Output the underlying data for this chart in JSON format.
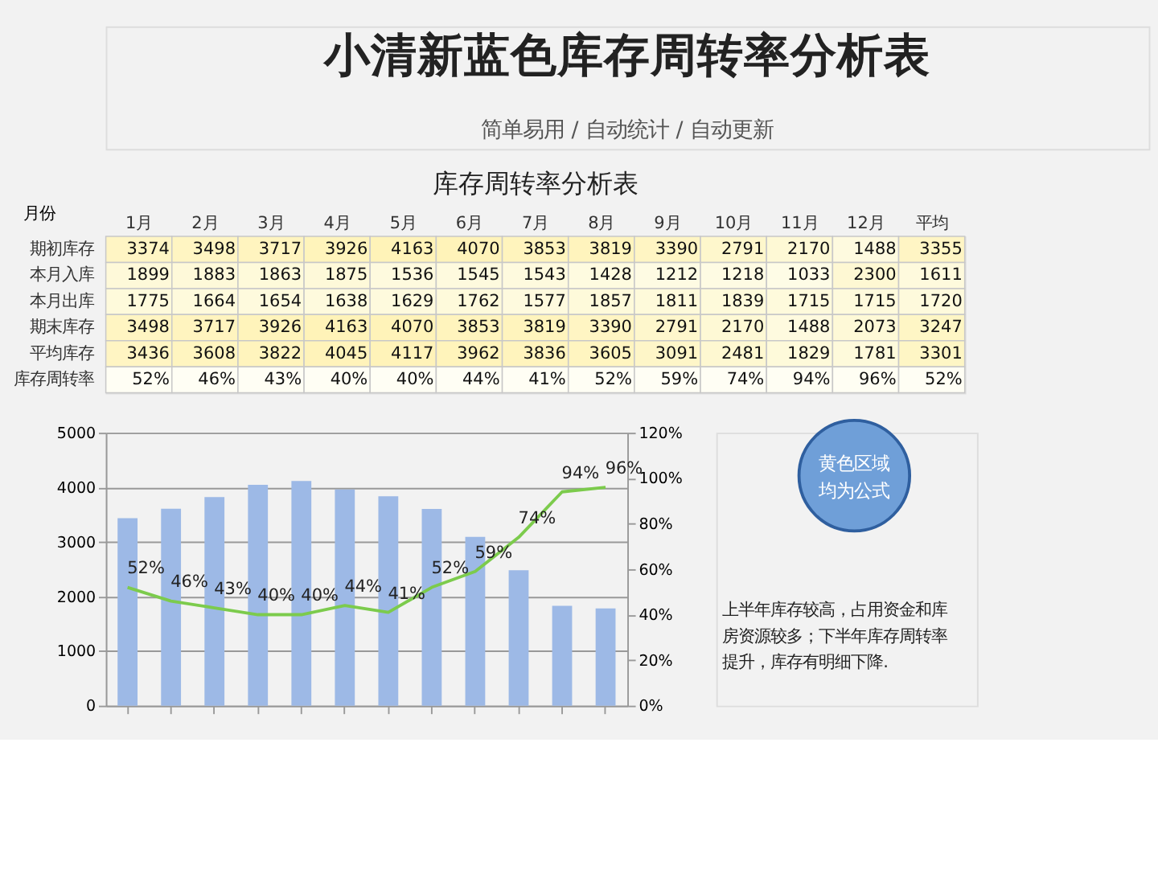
{
  "chart_data": [
    {
      "type": "other",
      "title": "小清新蓝色库存周转率分析表",
      "subtitle": "简单易用 / 自动统计 / 自动更新"
    },
    {
      "type": "heatmap",
      "title": "库存周转率分析表",
      "ylabel": "月份",
      "categories": [
        "1月",
        "2月",
        "3月",
        "4月",
        "5月",
        "6月",
        "7月",
        "8月",
        "9月",
        "10月",
        "11月",
        "12月",
        "平均"
      ],
      "y_categories": [
        "期初库存",
        "本月入库",
        "本月出库",
        "期末库存",
        "平均库存",
        "库存周转率"
      ],
      "cells": [
        [
          3374,
          3498,
          3717,
          3926,
          4163,
          4070,
          3853,
          3819,
          3390,
          2791,
          2170,
          1488,
          3355
        ],
        [
          1899,
          1883,
          1863,
          1875,
          1536,
          1545,
          1543,
          1428,
          1212,
          1218,
          1033,
          2300,
          1611
        ],
        [
          1775,
          1664,
          1654,
          1638,
          1629,
          1762,
          1577,
          1857,
          1811,
          1839,
          1715,
          1715,
          1720
        ],
        [
          3498,
          3717,
          3926,
          4163,
          4070,
          3853,
          3819,
          3390,
          2791,
          2170,
          1488,
          2073,
          3247
        ],
        [
          3436,
          3608,
          3822,
          4045,
          4117,
          3962,
          3836,
          3605,
          3091,
          2481,
          1829,
          1781,
          3301
        ],
        [
          52,
          46,
          43,
          40,
          40,
          44,
          41,
          52,
          59,
          74,
          94,
          96,
          52
        ]
      ],
      "cell_labels": [
        [
          "3374",
          "3498",
          "3717",
          "3926",
          "4163",
          "4070",
          "3853",
          "3819",
          "3390",
          "2791",
          "2170",
          "1488",
          "3355"
        ],
        [
          "1899",
          "1883",
          "1863",
          "1875",
          "1536",
          "1545",
          "1543",
          "1428",
          "1212",
          "1218",
          "1033",
          "2300",
          "1611"
        ],
        [
          "1775",
          "1664",
          "1654",
          "1638",
          "1629",
          "1762",
          "1577",
          "1857",
          "1811",
          "1839",
          "1715",
          "1715",
          "1720"
        ],
        [
          "3498",
          "3717",
          "3926",
          "4163",
          "4070",
          "3853",
          "3819",
          "3390",
          "2791",
          "2170",
          "1488",
          "2073",
          "3247"
        ],
        [
          "3436",
          "3608",
          "3822",
          "4045",
          "4117",
          "3962",
          "3836",
          "3605",
          "3091",
          "2481",
          "1829",
          "1781",
          "3301"
        ],
        [
          "52%",
          "46%",
          "43%",
          "40%",
          "40%",
          "44%",
          "41%",
          "52%",
          "59%",
          "74%",
          "94%",
          "96%",
          "52%"
        ]
      ]
    },
    {
      "type": "bar",
      "categories": [
        null,
        null,
        null,
        null,
        null,
        null,
        null,
        null,
        null,
        null,
        null,
        null
      ],
      "series": [
        {
          "type": "bar",
          "color": "#9db9e6",
          "values": [
            3436,
            3608,
            3822,
            4045,
            4117,
            3962,
            3836,
            3605,
            3091,
            2481,
            1829,
            1781
          ]
        },
        {
          "type": "line",
          "axis": "y2",
          "color": "#7ccb4c",
          "values": [
            52,
            46,
            43,
            40,
            40,
            44,
            41,
            52,
            59,
            74,
            94,
            96
          ],
          "value_labels": [
            "52%",
            "46%",
            "43%",
            "40%",
            "40%",
            "44%",
            "41%",
            "52%",
            "59%",
            "74%",
            "94%",
            "96%"
          ]
        }
      ],
      "ylim": [
        0,
        5000
      ],
      "yticks": [
        0,
        1000,
        2000,
        3000,
        4000,
        5000
      ],
      "y2lim": [
        0,
        120
      ],
      "y2ticks": [
        {
          "value": 0,
          "label": "0%"
        },
        {
          "value": 20,
          "label": "20%"
        },
        {
          "value": 40,
          "label": "40%"
        },
        {
          "value": 60,
          "label": "60%"
        },
        {
          "value": 80,
          "label": "80%"
        },
        {
          "value": 100,
          "label": "100%"
        },
        {
          "value": 120,
          "label": "120%"
        }
      ],
      "grid": "y",
      "marker": "none",
      "line_style": "solid",
      "annotations": [
        "黄色区域均为公式",
        "上半年库存较高，占用资金和库房资源较多；下半年库存周转率提升，库存有明细下降."
      ]
    }
  ]
}
